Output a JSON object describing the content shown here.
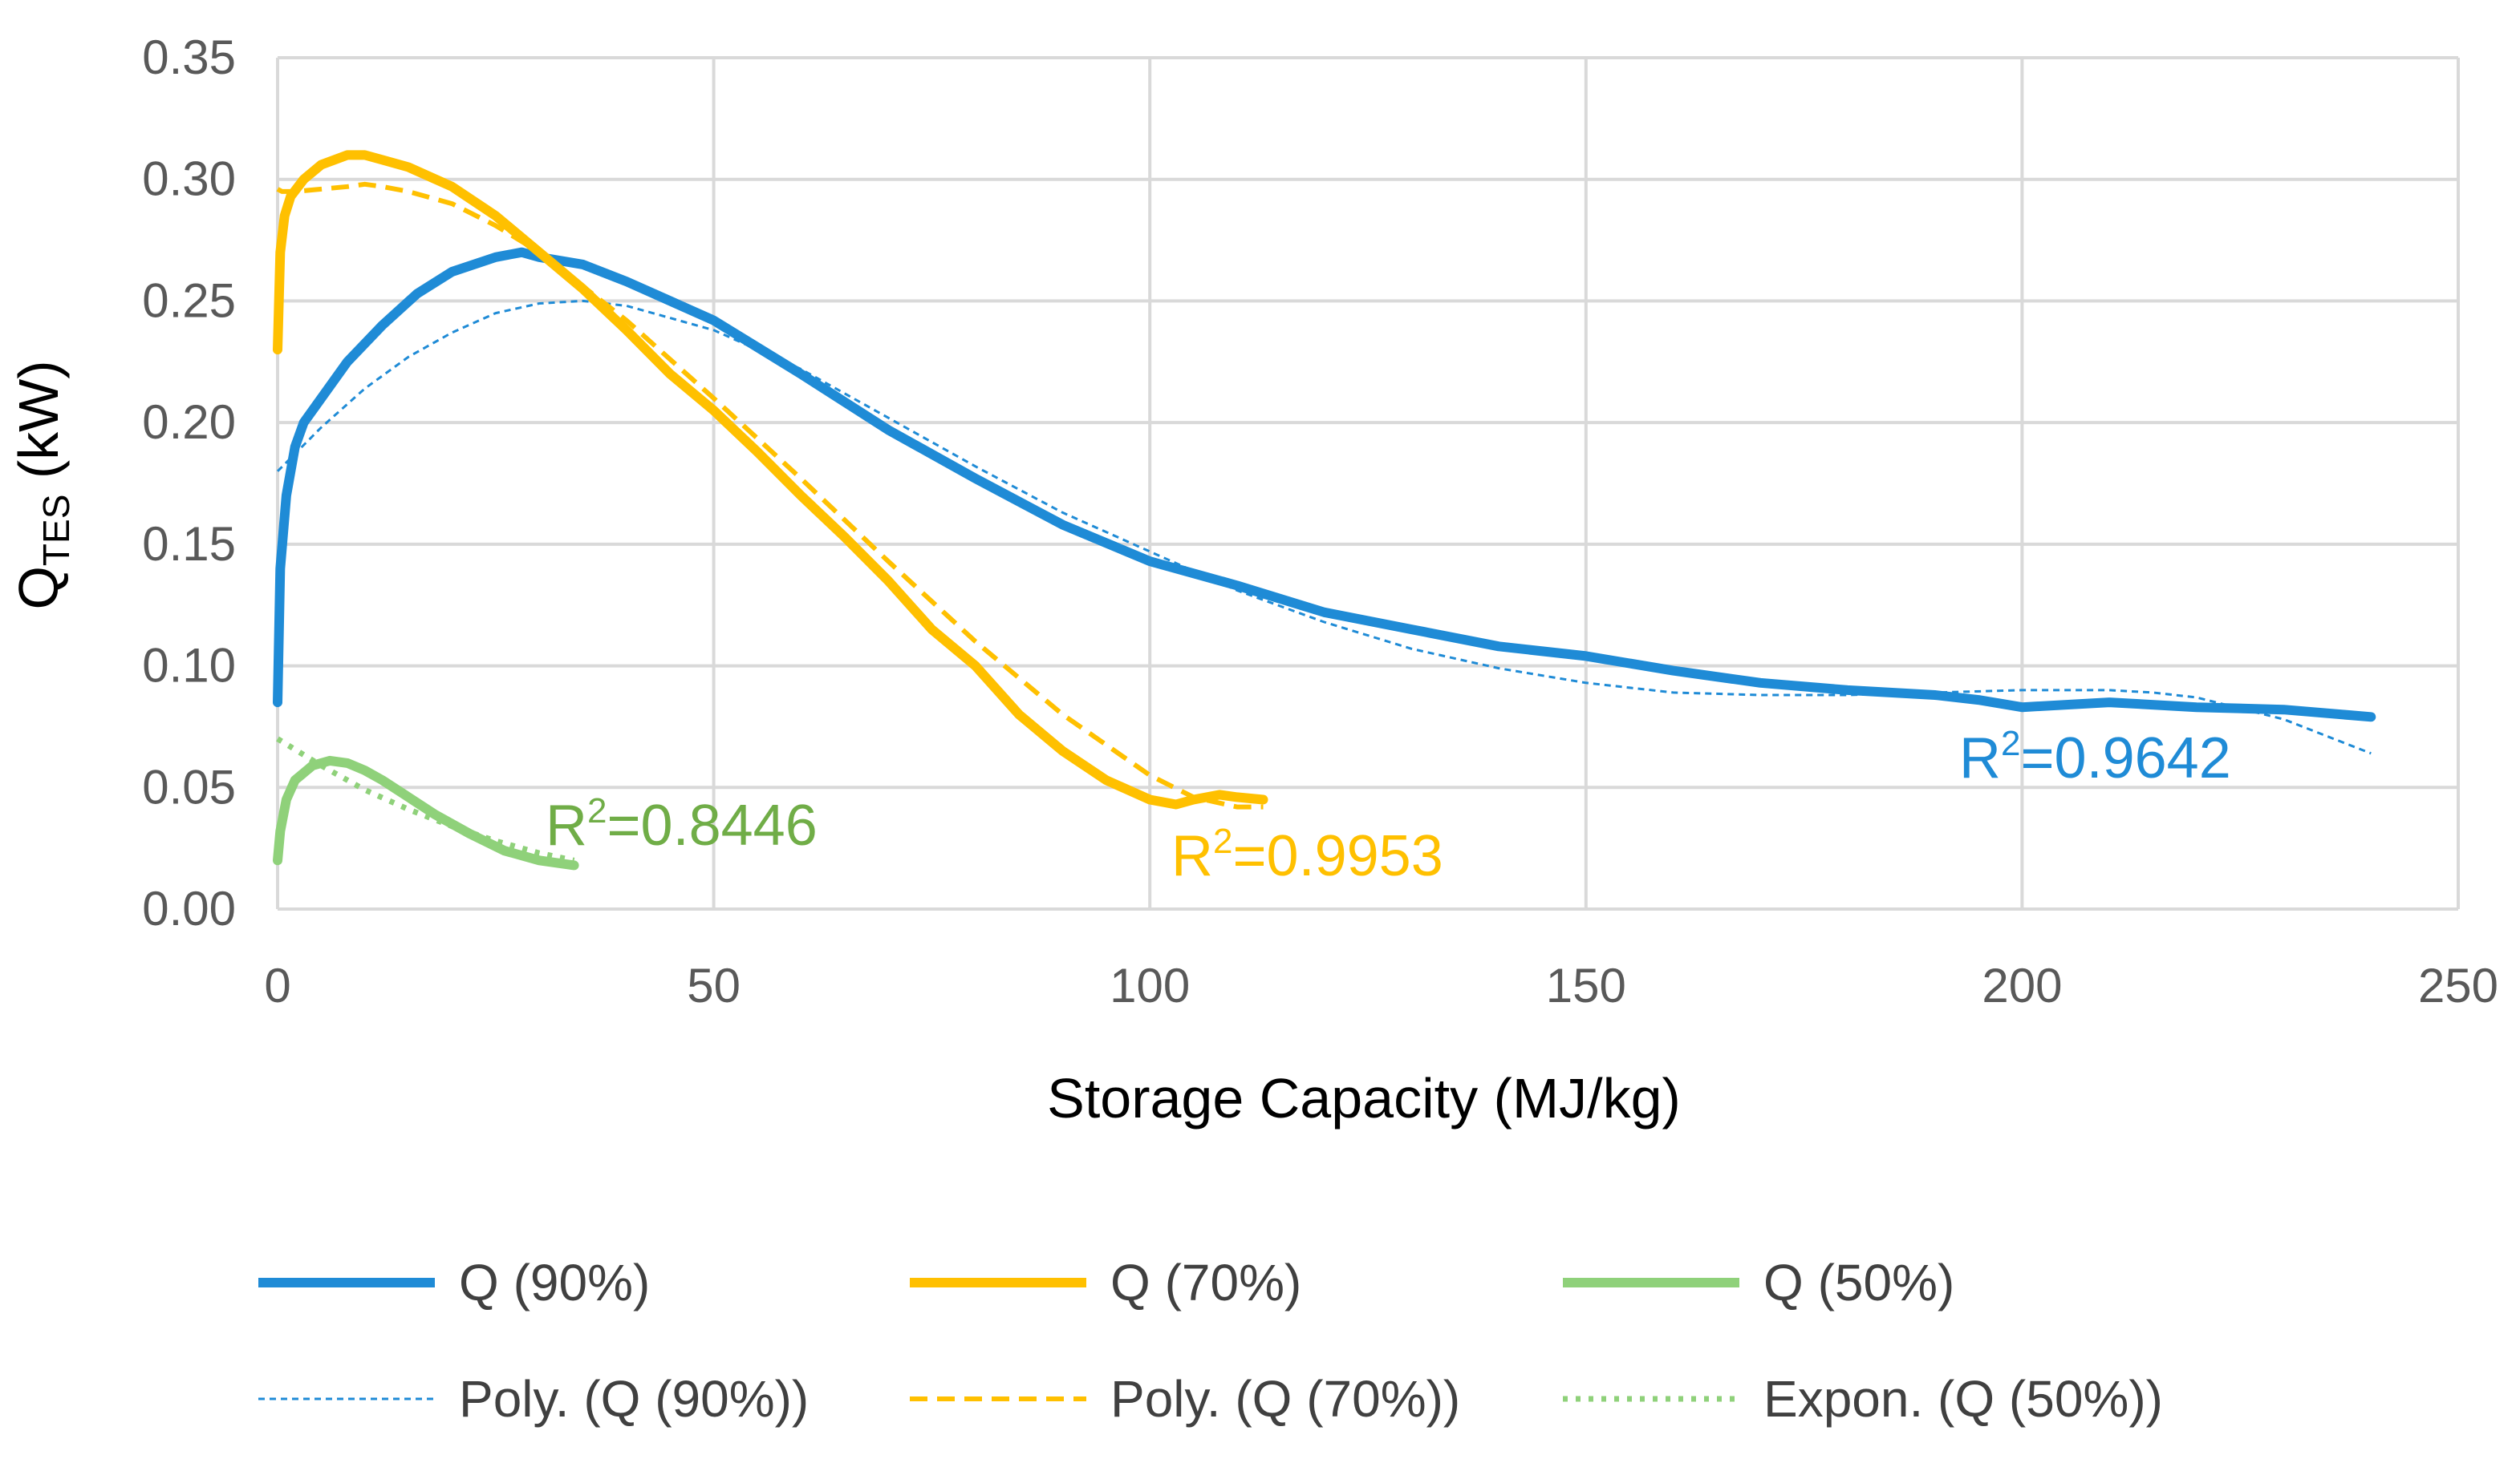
{
  "chart_data": {
    "type": "line",
    "title": "",
    "xlabel": "Storage Capacity (MJ/kg)",
    "ylabel_main": "Q",
    "ylabel_sub": "TES",
    "ylabel_unit": "(kW)",
    "xlim": [
      0,
      250
    ],
    "ylim": [
      0,
      0.35
    ],
    "x_ticks": [
      0,
      50,
      100,
      150,
      200,
      250
    ],
    "y_ticks": [
      0,
      0.05,
      0.1,
      0.15,
      0.2,
      0.25,
      0.3,
      0.35
    ],
    "x_tick_labels": [
      "0",
      "50",
      "100",
      "150",
      "200",
      "250"
    ],
    "y_tick_labels": [
      "0.00",
      "0.05",
      "0.10",
      "0.15",
      "0.20",
      "0.25",
      "0.30",
      "0.35"
    ],
    "grid": true,
    "legend_position": "bottom",
    "series": [
      {
        "name": "Q (90%)",
        "color": "#1f8bd6",
        "style": "solid",
        "x": [
          0,
          0.3,
          1,
          2,
          3,
          5,
          8,
          12,
          16,
          20,
          25,
          28,
          30,
          35,
          40,
          45,
          50,
          60,
          70,
          80,
          90,
          100,
          110,
          120,
          130,
          140,
          150,
          160,
          170,
          180,
          190,
          195,
          200,
          210,
          220,
          230,
          240
        ],
        "y": [
          0.085,
          0.14,
          0.17,
          0.19,
          0.2,
          0.21,
          0.225,
          0.24,
          0.253,
          0.262,
          0.268,
          0.27,
          0.268,
          0.265,
          0.258,
          0.25,
          0.242,
          0.22,
          0.197,
          0.177,
          0.158,
          0.143,
          0.133,
          0.122,
          0.115,
          0.108,
          0.104,
          0.098,
          0.093,
          0.09,
          0.088,
          0.086,
          0.083,
          0.085,
          0.083,
          0.082,
          0.079
        ]
      },
      {
        "name": "Q (70%)",
        "color": "#ffc000",
        "style": "solid",
        "x": [
          0,
          0.3,
          0.8,
          1.5,
          3,
          5,
          8,
          10,
          12,
          15,
          20,
          25,
          30,
          35,
          40,
          45,
          50,
          55,
          60,
          65,
          70,
          75,
          80,
          85,
          90,
          95,
          100,
          103,
          105,
          108,
          110,
          113
        ],
        "y": [
          0.23,
          0.27,
          0.285,
          0.293,
          0.3,
          0.306,
          0.31,
          0.31,
          0.308,
          0.305,
          0.297,
          0.285,
          0.27,
          0.255,
          0.238,
          0.22,
          0.205,
          0.188,
          0.17,
          0.153,
          0.135,
          0.115,
          0.1,
          0.08,
          0.065,
          0.053,
          0.045,
          0.043,
          0.045,
          0.047,
          0.046,
          0.045
        ]
      },
      {
        "name": "Q (50%)",
        "color": "#8fd17a",
        "style": "solid",
        "x": [
          0,
          0.3,
          1,
          2,
          4,
          6,
          8,
          10,
          12,
          15,
          18,
          22,
          26,
          30,
          34
        ],
        "y": [
          0.02,
          0.032,
          0.045,
          0.053,
          0.059,
          0.061,
          0.06,
          0.057,
          0.053,
          0.046,
          0.039,
          0.031,
          0.024,
          0.02,
          0.018
        ]
      },
      {
        "name": "Poly. (Q (90%))",
        "color": "#1f8bd6",
        "style": "dotted-thin",
        "x": [
          0,
          5,
          10,
          15,
          20,
          25,
          30,
          35,
          40,
          50,
          60,
          70,
          80,
          90,
          100,
          110,
          120,
          130,
          140,
          150,
          160,
          170,
          180,
          190,
          200,
          210,
          215,
          220,
          230,
          240
        ],
        "y": [
          0.18,
          0.198,
          0.214,
          0.227,
          0.237,
          0.245,
          0.249,
          0.25,
          0.248,
          0.238,
          0.222,
          0.202,
          0.182,
          0.163,
          0.147,
          0.131,
          0.118,
          0.107,
          0.099,
          0.093,
          0.089,
          0.088,
          0.088,
          0.089,
          0.09,
          0.09,
          0.089,
          0.087,
          0.078,
          0.064
        ]
      },
      {
        "name": "Poly. (Q (70%))",
        "color": "#ffc000",
        "style": "dashed",
        "x": [
          0,
          0.5,
          2,
          5,
          8,
          10,
          12,
          15,
          20,
          25,
          30,
          40,
          50,
          60,
          70,
          80,
          90,
          100,
          105,
          110,
          113
        ],
        "y": [
          0.296,
          0.295,
          0.295,
          0.296,
          0.297,
          0.298,
          0.297,
          0.295,
          0.29,
          0.281,
          0.27,
          0.242,
          0.21,
          0.177,
          0.143,
          0.11,
          0.08,
          0.055,
          0.046,
          0.042,
          0.042
        ]
      },
      {
        "name": "Expon. (Q (50%))",
        "color": "#8fd17a",
        "style": "dotted",
        "x": [
          0,
          5,
          10,
          15,
          20,
          25,
          30,
          34
        ],
        "y": [
          0.07,
          0.059,
          0.049,
          0.041,
          0.034,
          0.028,
          0.023,
          0.02
        ]
      }
    ],
    "annotations": [
      {
        "text": "R",
        "sup": "2",
        "value": "=0.9642",
        "color": "#1f8bd6",
        "near": "Q (90%) end"
      },
      {
        "text": "R",
        "sup": "2",
        "value": "=0.9953",
        "color": "#ffc000",
        "near": "Q (70%) end"
      },
      {
        "text": "R",
        "sup": "2",
        "value": "=0.8446",
        "color": "#70ad47",
        "near": "Q (50%) end"
      }
    ]
  }
}
